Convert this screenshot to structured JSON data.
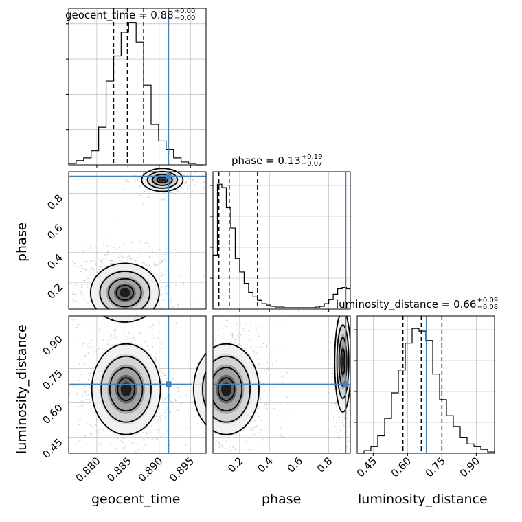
{
  "chart_data": {
    "type": "corner",
    "parameters": [
      "geocent_time",
      "phase",
      "luminosity_distance"
    ],
    "truths": {
      "geocent_time": 0.8915,
      "phase": 0.915,
      "luminosity_distance": 0.682
    },
    "truth_color": "#4682b4",
    "titles": [
      {
        "param": "geocent_time",
        "median": "0.88",
        "plus": "+0.00",
        "minus": "−0.00"
      },
      {
        "param": "phase",
        "median": "0.13",
        "plus": "+0.19",
        "minus": "−0.07"
      },
      {
        "param": "luminosity_distance",
        "median": "0.66",
        "plus": "+0.09",
        "minus": "−0.08"
      }
    ],
    "xlabels": [
      "geocent_time",
      "phase",
      "luminosity_distance"
    ],
    "ylabels": {
      "row1": "phase",
      "row2": "luminosity_distance"
    },
    "ticks": {
      "geocent_time": [
        "0.880",
        "0.885",
        "0.890",
        "0.895"
      ],
      "phase": [
        "0.2",
        "0.4",
        "0.6",
        "0.8"
      ],
      "phase_y": [
        "0.2",
        "0.4",
        "0.6",
        "0.8"
      ],
      "luminosity_distance": [
        "0.45",
        "0.60",
        "0.75",
        "0.90"
      ]
    },
    "ranges": {
      "geocent_time": [
        0.8755,
        0.8975
      ],
      "phase": [
        0.02,
        0.945
      ],
      "luminosity_distance": [
        0.38,
        0.98
      ]
    },
    "quantile_lines": {
      "geocent_time": [
        0.8827,
        0.8849,
        0.8875
      ],
      "phase": [
        0.06,
        0.13,
        0.32
      ],
      "luminosity_distance": [
        0.58,
        0.66,
        0.75
      ]
    },
    "hist_geocent_time": {
      "bin_edges": [
        0.8755,
        0.8767,
        0.8779,
        0.8791,
        0.8803,
        0.8815,
        0.8827,
        0.8839,
        0.8851,
        0.8863,
        0.8875,
        0.8887,
        0.8899,
        0.8911,
        0.8923,
        0.8935,
        0.8947,
        0.8959,
        0.8971
      ],
      "counts": [
        1,
        3,
        5,
        10,
        27,
        60,
        78,
        95,
        102,
        88,
        57,
        29,
        17,
        11,
        5,
        2,
        1,
        0
      ]
    },
    "hist_phase": {
      "bin_edges": [
        0.02,
        0.05,
        0.08,
        0.11,
        0.14,
        0.17,
        0.2,
        0.23,
        0.26,
        0.29,
        0.32,
        0.35,
        0.38,
        0.41,
        0.44,
        0.47,
        0.5,
        0.53,
        0.56,
        0.59,
        0.62,
        0.65,
        0.68,
        0.71,
        0.74,
        0.77,
        0.8,
        0.83,
        0.86,
        0.89,
        0.92,
        0.945
      ],
      "counts": [
        80,
        185,
        180,
        150,
        120,
        75,
        55,
        38,
        25,
        18,
        13,
        8,
        6,
        4,
        3,
        3,
        2,
        2,
        2,
        2,
        2,
        2,
        2,
        3,
        4,
        8,
        14,
        22,
        30,
        32,
        30
      ]
    },
    "hist_luminosity_distance": {
      "bin_edges": [
        0.38,
        0.41,
        0.44,
        0.47,
        0.5,
        0.53,
        0.56,
        0.59,
        0.62,
        0.65,
        0.68,
        0.71,
        0.74,
        0.77,
        0.8,
        0.83,
        0.86,
        0.89,
        0.92,
        0.95,
        0.98
      ],
      "counts": [
        0,
        2,
        5,
        13,
        26,
        45,
        62,
        82,
        93,
        91,
        84,
        59,
        40,
        28,
        20,
        12,
        7,
        5,
        3,
        1
      ]
    },
    "scatter_clusters": {
      "phase_vs_geocent_time": [
        {
          "cx": 0.8845,
          "cy": 0.13,
          "sx": 0.0025,
          "sy": 0.09
        },
        {
          "cx": 0.8905,
          "cy": 0.89,
          "sx": 0.0015,
          "sy": 0.035
        }
      ],
      "luminosity_distance_vs_geocent_time": [
        {
          "cx": 0.8847,
          "cy": 0.66,
          "sx": 0.0025,
          "sy": 0.09
        }
      ],
      "luminosity_distance_vs_phase": [
        {
          "cx": 0.11,
          "cy": 0.66,
          "sx": 0.1,
          "sy": 0.09
        },
        {
          "cx": 0.895,
          "cy": 0.78,
          "sx": 0.025,
          "sy": 0.1
        }
      ]
    },
    "grid": true,
    "colors": {
      "hist": "#000000",
      "scatter": "#b0b0b0",
      "grid": "#b0b0b0"
    }
  }
}
